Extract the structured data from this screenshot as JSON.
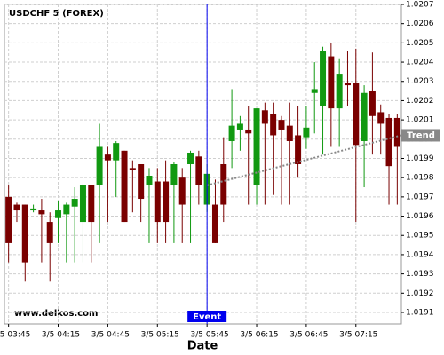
{
  "chart_data": {
    "type": "candlestick",
    "title": "USDCHF 5 (FOREX)",
    "watermark": "www.delkos.com",
    "x_label": "Date",
    "categories": [
      "3/5 03:45",
      null,
      null,
      null,
      null,
      null,
      "3/5 04:15",
      null,
      null,
      null,
      null,
      null,
      "3/5 04:45",
      null,
      null,
      null,
      null,
      null,
      "3/5 05:15",
      null,
      null,
      null,
      null,
      null,
      "3/5 05:45",
      null,
      null,
      null,
      null,
      null,
      "3/5 06:15",
      null,
      null,
      null,
      null,
      null,
      "3/5 06:45",
      null,
      null,
      null,
      null,
      null,
      "3/5 07:15",
      null,
      null,
      null,
      null,
      null
    ],
    "open": [
      1.0197,
      1.01966,
      1.01966,
      1.01963,
      1.01963,
      1.01957,
      1.01959,
      1.01961,
      1.01965,
      1.01957,
      1.01976,
      1.01976,
      1.01992,
      1.01989,
      1.01994,
      1.01985,
      1.01987,
      1.01976,
      1.01978,
      1.01978,
      1.01976,
      1.0198,
      1.01987,
      1.01991,
      1.01966,
      1.01966,
      1.01987,
      1.01999,
      1.02005,
      1.02005,
      1.01976,
      1.02015,
      1.02013,
      1.0201,
      1.02007,
      1.02002,
      1.02001,
      1.02024,
      1.02017,
      1.02043,
      1.02016,
      1.02029,
      1.02029,
      1.01999,
      1.02025,
      1.02014,
      1.02011,
      1.02011
    ],
    "high": [
      1.01976,
      1.01967,
      1.01966,
      1.01966,
      1.01969,
      1.01962,
      1.01968,
      1.01967,
      1.01975,
      1.01977,
      1.01976,
      1.02008,
      1.01996,
      1.01999,
      1.01994,
      1.01989,
      1.01987,
      1.01985,
      1.01985,
      1.01989,
      1.01988,
      1.01985,
      1.01994,
      1.01994,
      1.01987,
      1.01979,
      1.02001,
      1.02026,
      1.02012,
      1.02017,
      1.02016,
      1.02019,
      1.02019,
      1.02012,
      1.02019,
      1.02017,
      1.02017,
      1.0204,
      1.02048,
      1.0205,
      1.02042,
      1.02046,
      1.02047,
      1.02028,
      1.02045,
      1.02018,
      1.02013,
      1.02013
    ],
    "low": [
      1.01936,
      1.01957,
      1.01926,
      1.01962,
      1.01936,
      1.01926,
      1.01946,
      1.01936,
      1.01936,
      1.01936,
      1.01936,
      1.01946,
      1.01957,
      1.0197,
      1.01957,
      1.01962,
      1.01957,
      1.01946,
      1.01946,
      1.01946,
      1.01946,
      1.01946,
      1.01946,
      1.01966,
      1.01962,
      1.01946,
      1.01957,
      1.01985,
      1.01994,
      1.01966,
      1.01966,
      1.01966,
      1.01971,
      1.01966,
      1.01966,
      1.0198,
      1.01995,
      1.02003,
      1.01992,
      1.01996,
      1.01996,
      1.02017,
      1.01957,
      1.01975,
      1.01992,
      1.01992,
      1.01966,
      1.01966
    ],
    "close": [
      1.01946,
      1.01963,
      1.01936,
      1.01964,
      1.01961,
      1.01946,
      1.01963,
      1.01966,
      1.01969,
      1.01976,
      1.01957,
      1.01996,
      1.01989,
      1.01998,
      1.01957,
      1.01984,
      1.01969,
      1.01981,
      1.01957,
      1.01957,
      1.01987,
      1.01966,
      1.01993,
      1.01976,
      1.01982,
      1.01946,
      1.01966,
      1.02007,
      1.02008,
      1.02003,
      1.02016,
      1.02008,
      1.02002,
      1.02005,
      1.01999,
      1.01987,
      1.02006,
      1.02026,
      1.02046,
      1.02016,
      1.02034,
      1.02028,
      1.01997,
      1.02024,
      1.02012,
      1.02008,
      1.01986,
      1.01996
    ],
    "up_color": "#119911",
    "down_color": "#7a0000",
    "ylim": [
      1.01904,
      1.0207
    ],
    "yticks": [
      1.0191,
      1.0192,
      1.0193,
      1.0194,
      1.0195,
      1.0196,
      1.0197,
      1.0198,
      1.0199,
      {
        "value": 1.02,
        "label": "1.0200"
      },
      1.0201,
      1.0202,
      1.0203,
      1.0204,
      1.0205,
      1.0206,
      1.0207
    ],
    "grid": true,
    "event": {
      "label": "Event",
      "x": "3/5 05:45",
      "color": "#0000ee"
    },
    "trend": {
      "label": "Trend",
      "x": "3/5 05:45",
      "start": 1.01976,
      "end": 1.02002,
      "color": "#888888"
    }
  }
}
